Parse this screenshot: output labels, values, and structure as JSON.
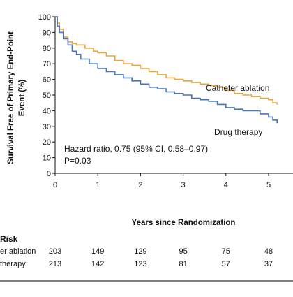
{
  "chart_data": {
    "type": "line",
    "ylabel": "Survival Free of Primary End-Point Event (%)",
    "ylabel_lines": [
      "Survival Free of Primary End-Point",
      "Event (%)"
    ],
    "xlabel": "Years since Randomization",
    "xlim": [
      0,
      5.2
    ],
    "ylim": [
      0,
      100
    ],
    "x_ticks": [
      "0",
      "1",
      "2",
      "3",
      "4",
      "5"
    ],
    "y_ticks": [
      "0",
      "10",
      "20",
      "30",
      "40",
      "50",
      "60",
      "70",
      "80",
      "90",
      "100"
    ],
    "grid": false,
    "legend": "none",
    "series": [
      {
        "name": "Catheter ablation",
        "color": "#e8a53a",
        "points": [
          [
            0,
            100
          ],
          [
            0.05,
            96
          ],
          [
            0.1,
            92
          ],
          [
            0.2,
            87
          ],
          [
            0.3,
            84
          ],
          [
            0.4,
            83
          ],
          [
            0.5,
            82
          ],
          [
            0.7,
            80
          ],
          [
            0.9,
            78
          ],
          [
            1.0,
            77
          ],
          [
            1.2,
            75
          ],
          [
            1.4,
            72
          ],
          [
            1.6,
            70
          ],
          [
            1.8,
            69
          ],
          [
            2.0,
            67
          ],
          [
            2.2,
            65
          ],
          [
            2.4,
            63
          ],
          [
            2.6,
            61
          ],
          [
            2.8,
            60
          ],
          [
            3.0,
            59
          ],
          [
            3.2,
            58
          ],
          [
            3.4,
            57
          ],
          [
            3.6,
            56
          ],
          [
            3.8,
            55
          ],
          [
            4.0,
            53
          ],
          [
            4.2,
            51
          ],
          [
            4.4,
            50
          ],
          [
            4.6,
            49
          ],
          [
            4.8,
            48
          ],
          [
            5.0,
            47
          ],
          [
            5.1,
            45
          ],
          [
            5.2,
            44
          ]
        ]
      },
      {
        "name": "Drug therapy",
        "color": "#4a76b8",
        "points": [
          [
            0,
            100
          ],
          [
            0.05,
            94
          ],
          [
            0.1,
            90
          ],
          [
            0.2,
            86
          ],
          [
            0.3,
            82
          ],
          [
            0.4,
            78
          ],
          [
            0.5,
            76
          ],
          [
            0.6,
            73
          ],
          [
            0.8,
            70
          ],
          [
            1.0,
            67
          ],
          [
            1.2,
            65
          ],
          [
            1.4,
            63
          ],
          [
            1.6,
            61
          ],
          [
            1.8,
            59
          ],
          [
            2.0,
            57
          ],
          [
            2.2,
            55
          ],
          [
            2.4,
            54
          ],
          [
            2.6,
            52
          ],
          [
            2.8,
            51
          ],
          [
            3.0,
            50
          ],
          [
            3.2,
            48
          ],
          [
            3.4,
            47
          ],
          [
            3.6,
            46
          ],
          [
            3.8,
            44
          ],
          [
            4.0,
            42
          ],
          [
            4.2,
            41
          ],
          [
            4.4,
            40
          ],
          [
            4.6,
            40
          ],
          [
            4.8,
            38
          ],
          [
            5.0,
            36
          ],
          [
            5.1,
            34
          ],
          [
            5.2,
            32
          ]
        ]
      }
    ],
    "annotations": {
      "catheter_label": "Catheter ablation",
      "drug_label": "Drug therapy",
      "hazard_ratio": "Hazard ratio, 0.75 (95% CI, 0.58–0.97)",
      "p_value": "P=0.03"
    },
    "risk_table": {
      "title": "Risk",
      "rows": [
        {
          "label": "er ablation",
          "values": [
            "203",
            "149",
            "129",
            "95",
            "75",
            "48"
          ]
        },
        {
          "label": "therapy",
          "values": [
            "213",
            "142",
            "123",
            "81",
            "57",
            "37"
          ]
        }
      ]
    }
  }
}
